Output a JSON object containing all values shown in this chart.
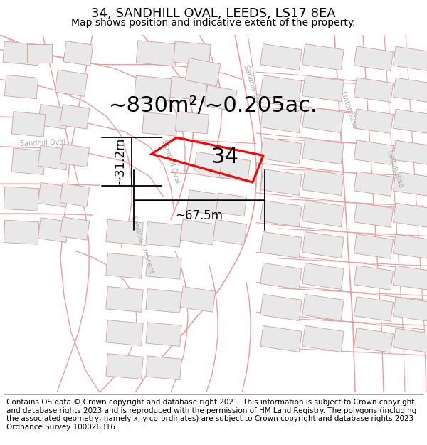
{
  "title": "34, SANDHILL OVAL, LEEDS, LS17 8EA",
  "subtitle": "Map shows position and indicative extent of the property.",
  "area_text": "~830m²/~0.205ac.",
  "number_label": "34",
  "dim_width": "~67.5m",
  "dim_height": "~31.2m",
  "footer": "Contains OS data © Crown copyright and database right 2021. This information is subject to Crown copyright and database rights 2023 and is reproduced with the permission of HM Land Registry. The polygons (including the associated geometry, namely x, y co-ordinates) are subject to Crown copyright and database rights 2023 Ordnance Survey 100026316.",
  "road_color": "#e8a0a0",
  "block_fill": "#e8e8e8",
  "block_edge": "#d0a0a0",
  "plot_color": "#ff0000",
  "title_fontsize": 13,
  "subtitle_fontsize": 10,
  "area_fontsize": 22,
  "number_fontsize": 22,
  "footer_fontsize": 7.5,
  "dim_fontsize": 12,
  "street_label_color": "#aaaaaa",
  "street_label_fontsize": 7
}
